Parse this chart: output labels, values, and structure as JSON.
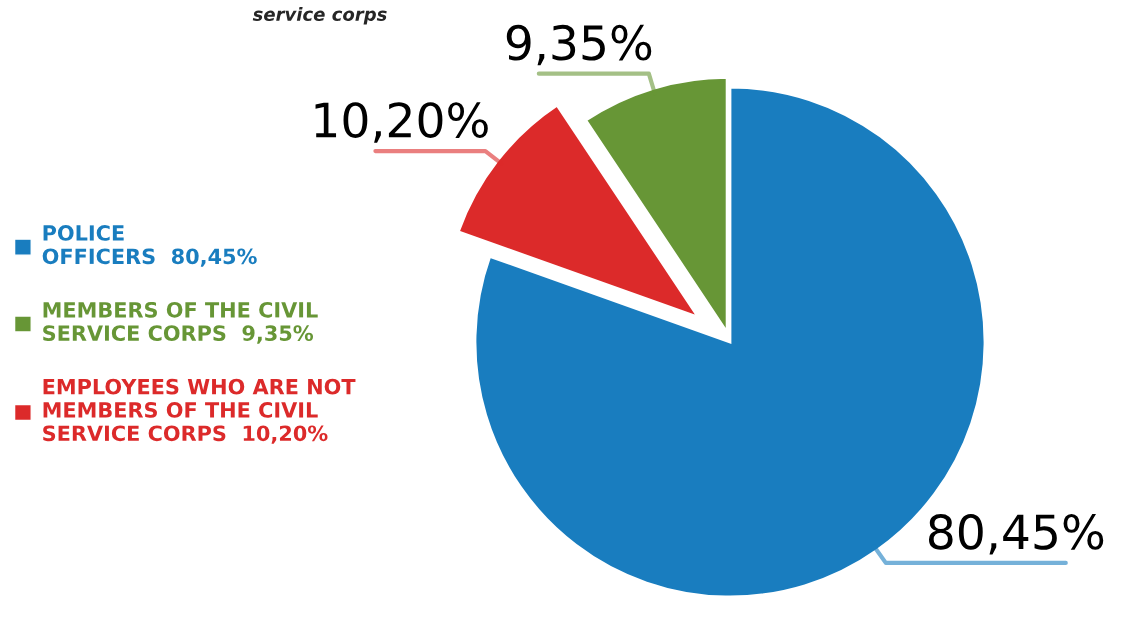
{
  "chart_data": {
    "type": "pie",
    "title": "service corps",
    "categories": [
      "POLICE\nOFFICERS",
      "EMPLOYEES WHO ARE NOT\nMEMBERS OF THE CIVIL\nSERVICE CORPS",
      "MEMBERS OF THE CIVIL\nSERVICE CORPS"
    ],
    "values": [
      80.45,
      10.2,
      9.35
    ],
    "value_labels": [
      "80,45%",
      "10,20%",
      "9,35%"
    ],
    "colors": [
      "#197dbf",
      "#dc2a2a",
      "#679636"
    ],
    "legend": "left"
  }
}
